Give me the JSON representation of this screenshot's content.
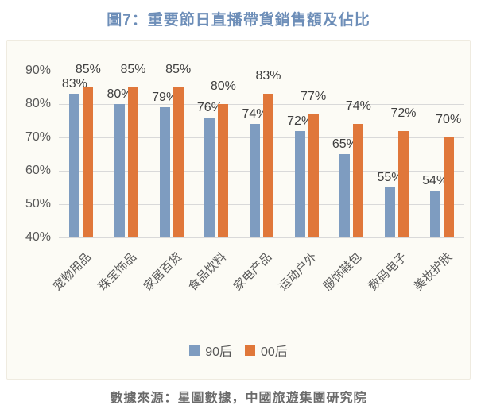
{
  "title": {
    "text": "圖7：重要節日直播帶貨銷售額及佔比",
    "color": "#6D8EB8"
  },
  "footer": {
    "source_text": "數據來源：星圖數據，中國旅遊集團研究院"
  },
  "chart_data": {
    "type": "bar",
    "title": "圖7：重要節日直播帶貨銷售額及佔比",
    "categories": [
      "宠物用品",
      "珠宝饰品",
      "家居百货",
      "食品饮料",
      "家电产品",
      "运动户外",
      "服饰鞋包",
      "数码电子",
      "美妆护肤"
    ],
    "series": [
      {
        "name": "90后",
        "color": "#7E9CC0",
        "values": [
          83,
          80,
          79,
          76,
          74,
          72,
          65,
          55,
          54
        ]
      },
      {
        "name": "00后",
        "color": "#E0773A",
        "values": [
          85,
          85,
          85,
          80,
          83,
          77,
          74,
          72,
          70
        ]
      }
    ],
    "ylabel": "",
    "xlabel": "",
    "ylim": [
      40,
      90
    ],
    "ytick_step": 10,
    "ytick_labels": [
      "40%",
      "50%",
      "60%",
      "70%",
      "80%",
      "90%"
    ],
    "value_suffix": "%",
    "grid": "horizontal",
    "gridline_color": "#d9d9d9",
    "axis_text_color": "#595959",
    "value_label_color": "#3f3f3f",
    "legend_position": "bottom"
  }
}
